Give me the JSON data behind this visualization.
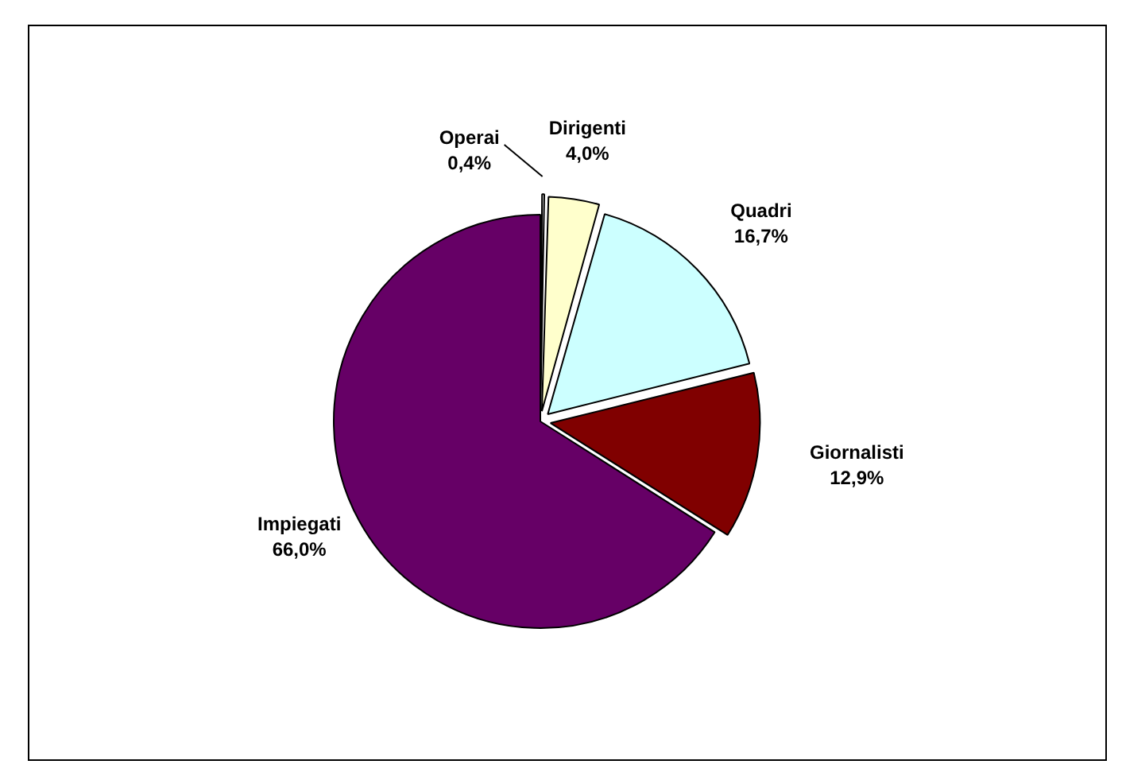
{
  "chart_data": {
    "type": "pie",
    "categories": [
      "Operai",
      "Dirigenti",
      "Quadri",
      "Giornalisti",
      "Impiegati"
    ],
    "values": [
      0.4,
      4.0,
      16.7,
      12.9,
      66.0
    ],
    "colors": [
      "#ffffff",
      "#ffffcc",
      "#ccffff",
      "#800000",
      "#660066"
    ],
    "value_labels": [
      "0,4%",
      "4,0%",
      "16,7%",
      "12,9%",
      "66,0%"
    ]
  }
}
